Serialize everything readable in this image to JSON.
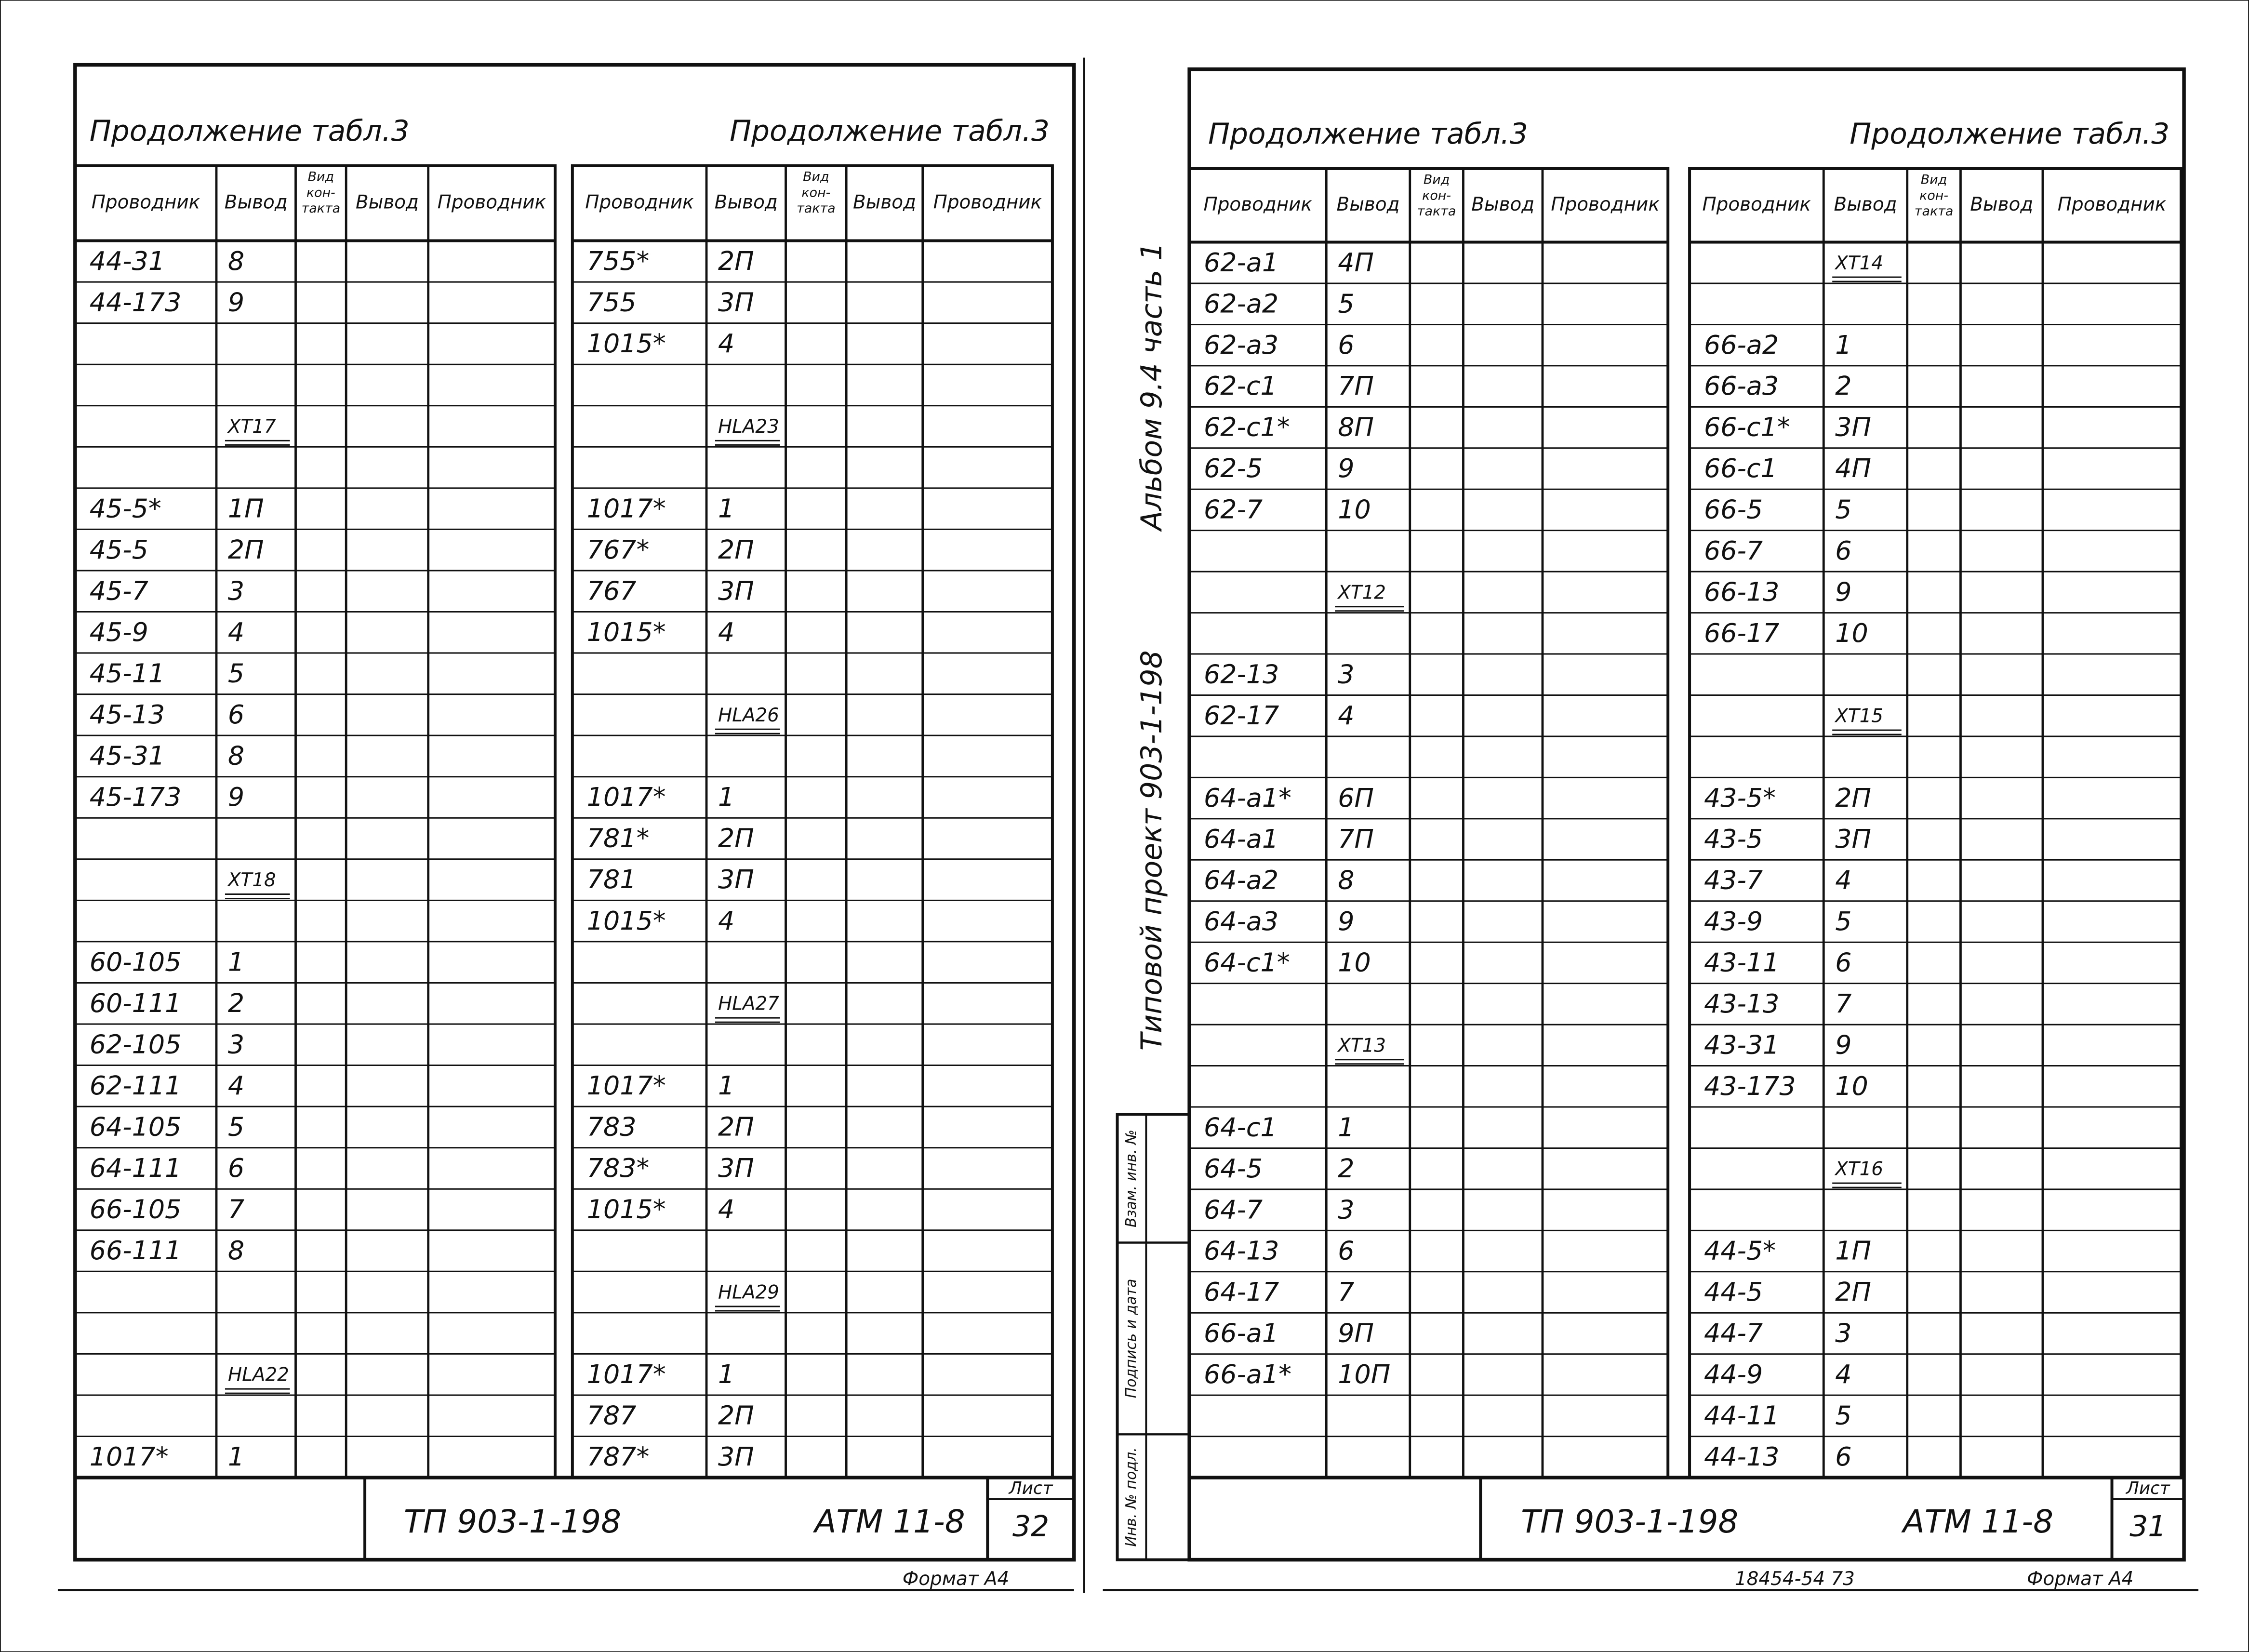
{
  "pages": [
    {
      "header_left": "Продолжение табл.3",
      "header_right": "Продолжение табл.3",
      "tables": [
        {
          "headers": [
            "Проводник",
            "Вывод",
            [
              "Вид",
              "кон-",
              "такта"
            ],
            "Вывод",
            "Проводник"
          ],
          "rows": [
            [
              "44-31",
              "8"
            ],
            [
              "44-173",
              "9"
            ],
            [
              null,
              null
            ],
            [
              null,
              null
            ],
            [
              null,
              "XT17"
            ],
            [
              null,
              null
            ],
            [
              "45-5*",
              "1П"
            ],
            [
              "45-5",
              "2П"
            ],
            [
              "45-7",
              "3"
            ],
            [
              "45-9",
              "4"
            ],
            [
              "45-11",
              "5"
            ],
            [
              "45-13",
              "6"
            ],
            [
              "45-31",
              "8"
            ],
            [
              "45-173",
              "9"
            ],
            [
              null,
              null
            ],
            [
              null,
              "XT18"
            ],
            [
              null,
              null
            ],
            [
              "60-105",
              "1"
            ],
            [
              "60-111",
              "2"
            ],
            [
              "62-105",
              "3"
            ],
            [
              "62-111",
              "4"
            ],
            [
              "64-105",
              "5"
            ],
            [
              "64-111",
              "6"
            ],
            [
              "66-105",
              "7"
            ],
            [
              "66-111",
              "8"
            ],
            [
              null,
              null
            ],
            [
              null,
              null
            ],
            [
              null,
              "HLA22"
            ],
            [
              null,
              null
            ],
            [
              "1017*",
              "1"
            ]
          ]
        },
        {
          "headers": [
            "Проводник",
            "Вывод",
            [
              "Вид",
              "кон-",
              "такта"
            ],
            "Вывод",
            "Проводник"
          ],
          "rows": [
            [
              "755*",
              "2П"
            ],
            [
              "755",
              "3П"
            ],
            [
              "1015*",
              "4"
            ],
            [
              null,
              null
            ],
            [
              null,
              "HLA23"
            ],
            [
              null,
              null
            ],
            [
              "1017*",
              "1"
            ],
            [
              "767*",
              "2П"
            ],
            [
              "767",
              "3П"
            ],
            [
              "1015*",
              "4"
            ],
            [
              null,
              null
            ],
            [
              null,
              "HLA26"
            ],
            [
              null,
              null
            ],
            [
              "1017*",
              "1"
            ],
            [
              "781*",
              "2П"
            ],
            [
              "781",
              "3П"
            ],
            [
              "1015*",
              "4"
            ],
            [
              null,
              null
            ],
            [
              null,
              "HLA27"
            ],
            [
              null,
              null
            ],
            [
              "1017*",
              "1"
            ],
            [
              "783",
              "2П"
            ],
            [
              "783*",
              "3П"
            ],
            [
              "1015*",
              "4"
            ],
            [
              null,
              null
            ],
            [
              null,
              "HLA29"
            ],
            [
              null,
              null
            ],
            [
              "1017*",
              "1"
            ],
            [
              "787",
              "2П"
            ],
            [
              "787*",
              "3П"
            ]
          ]
        }
      ],
      "stamp": {
        "designation": "ТП 903-1-198",
        "document": "АТМ 11-8",
        "sheet_label": "Лист",
        "sheet": 32
      },
      "format": "Формат А4"
    },
    {
      "header_left": "Продолжение табл.3",
      "header_right": "Продолжение табл.3",
      "tables": [
        {
          "headers": [
            "Проводник",
            "Вывод",
            [
              "Вид",
              "кон-",
              "такта"
            ],
            "Вывод",
            "Проводник"
          ],
          "rows": [
            [
              "62-а1",
              "4П"
            ],
            [
              "62-а2",
              "5"
            ],
            [
              "62-а3",
              "6"
            ],
            [
              "62-с1",
              "7П"
            ],
            [
              "62-с1*",
              "8П"
            ],
            [
              "62-5",
              "9"
            ],
            [
              "62-7",
              "10"
            ],
            [
              null,
              null
            ],
            [
              null,
              "XT12"
            ],
            [
              null,
              null
            ],
            [
              "62-13",
              "3"
            ],
            [
              "62-17",
              "4"
            ],
            [
              null,
              null
            ],
            [
              "64-а1*",
              "6П"
            ],
            [
              "64-а1",
              "7П"
            ],
            [
              "64-а2",
              "8"
            ],
            [
              "64-а3",
              "9"
            ],
            [
              "64-с1*",
              "10"
            ],
            [
              null,
              null
            ],
            [
              null,
              "XT13"
            ],
            [
              null,
              null
            ],
            [
              "64-с1",
              "1"
            ],
            [
              "64-5",
              "2"
            ],
            [
              "64-7",
              "3"
            ],
            [
              "64-13",
              "6"
            ],
            [
              "64-17",
              "7"
            ],
            [
              "66-а1",
              "9П"
            ],
            [
              "66-а1*",
              "10П"
            ],
            [
              null,
              null
            ],
            [
              null,
              null
            ]
          ]
        },
        {
          "headers": [
            "Проводник",
            "Вывод",
            [
              "Вид",
              "кон-",
              "такта"
            ],
            "Вывод",
            "Проводник"
          ],
          "rows": [
            [
              null,
              "XT14"
            ],
            [
              null,
              null
            ],
            [
              "66-а2",
              "1"
            ],
            [
              "66-а3",
              "2"
            ],
            [
              "66-с1*",
              "3П"
            ],
            [
              "66-с1",
              "4П"
            ],
            [
              "66-5",
              "5"
            ],
            [
              "66-7",
              "6"
            ],
            [
              "66-13",
              "9"
            ],
            [
              "66-17",
              "10"
            ],
            [
              null,
              null
            ],
            [
              null,
              "XT15"
            ],
            [
              null,
              null
            ],
            [
              "43-5*",
              "2П"
            ],
            [
              "43-5",
              "3П"
            ],
            [
              "43-7",
              "4"
            ],
            [
              "43-9",
              "5"
            ],
            [
              "43-11",
              "6"
            ],
            [
              "43-13",
              "7"
            ],
            [
              "43-31",
              "9"
            ],
            [
              "43-173",
              "10"
            ],
            [
              null,
              null
            ],
            [
              null,
              "XT16"
            ],
            [
              null,
              null
            ],
            [
              "44-5*",
              "1П"
            ],
            [
              "44-5",
              "2П"
            ],
            [
              "44-7",
              "3"
            ],
            [
              "44-9",
              "4"
            ],
            [
              "44-11",
              "5"
            ],
            [
              "44-13",
              "6"
            ]
          ]
        }
      ],
      "stamp": {
        "designation": "ТП 903-1-198",
        "document": "АТМ 11-8",
        "sheet_label": "Лист",
        "sheet": 31
      },
      "format": "Формат А4",
      "album": "Альбом 9.4 часть 1",
      "project": "Типовой проект 903-1-198",
      "side_labels": [
        "Взам. инв. №",
        "Подпись и дата",
        "Инв. № подл."
      ],
      "order": "18454-54 73"
    }
  ]
}
